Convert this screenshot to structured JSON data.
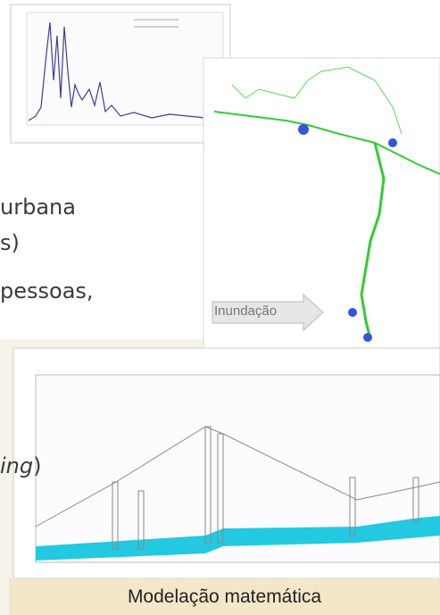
{
  "text": {
    "line1": "urbana",
    "line2": "s)",
    "line3": "pessoas,",
    "line4_italic": "ing",
    "line4_end": ")"
  },
  "map": {
    "arrow_label": "Inundação"
  },
  "caption": "Modelação matemática"
}
